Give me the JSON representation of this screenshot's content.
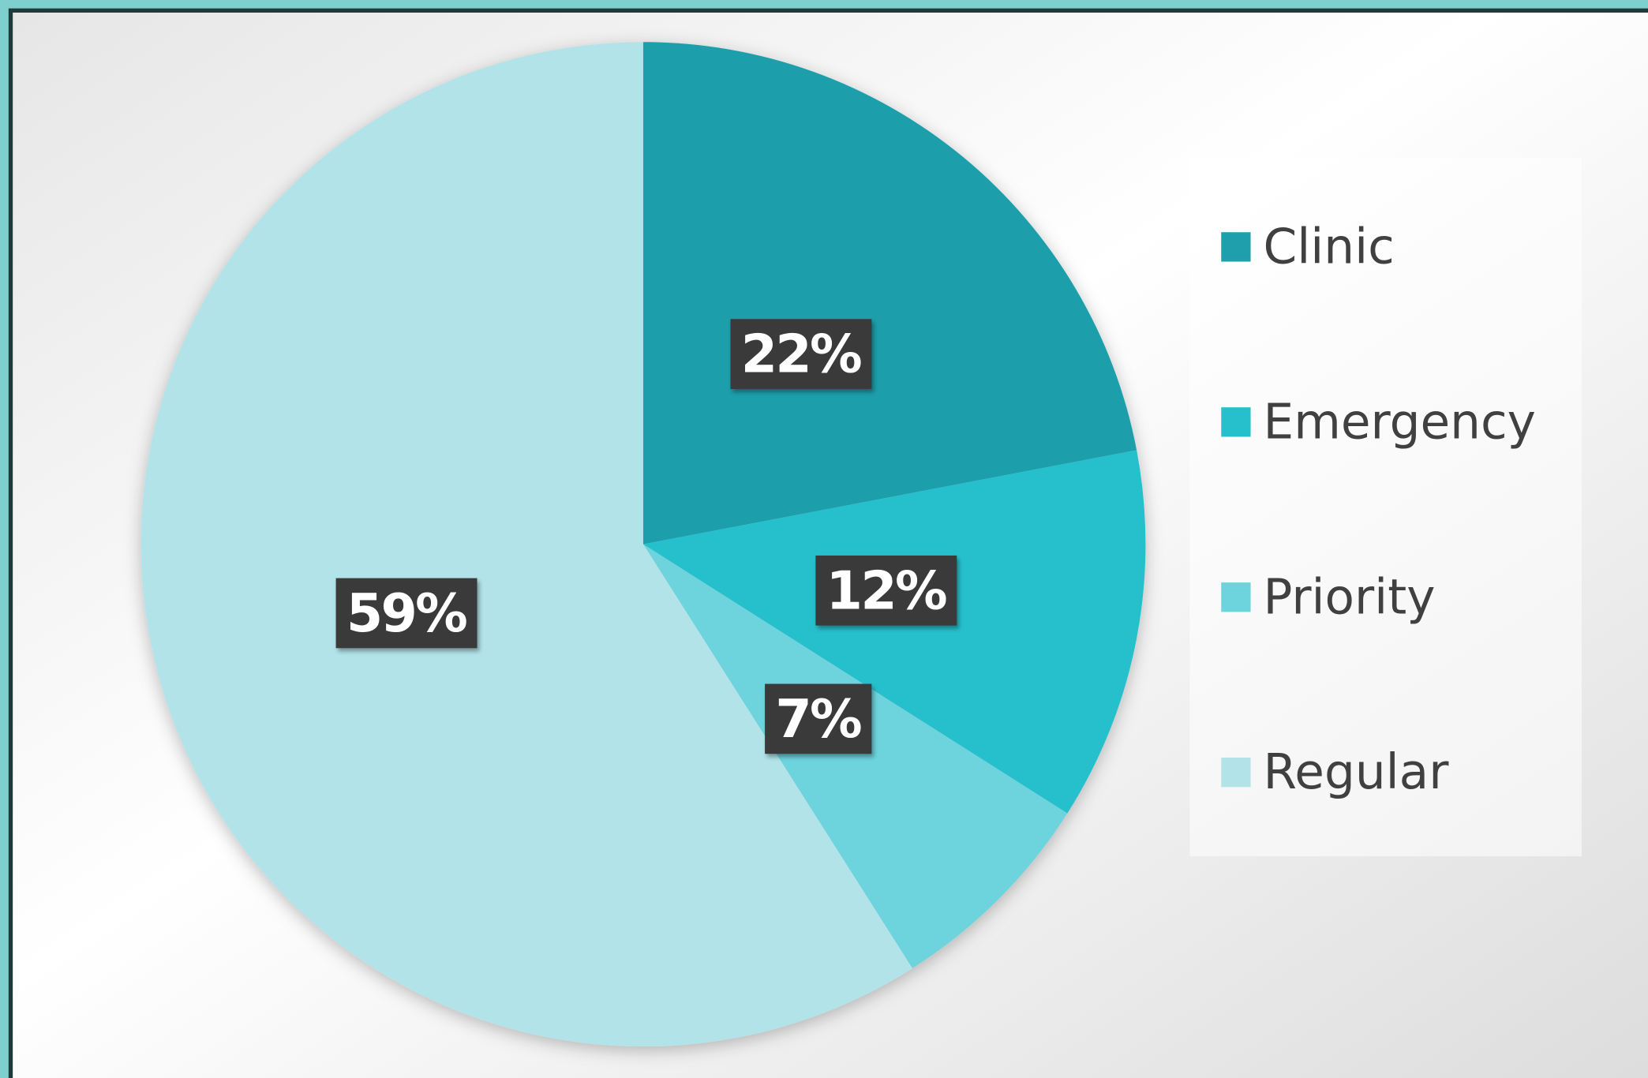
{
  "chart_data": {
    "type": "pie",
    "categories": [
      "Clinic",
      "Emergency",
      "Priority",
      "Regular"
    ],
    "values": [
      22,
      12,
      7,
      59
    ],
    "value_labels": [
      "22%",
      "12%",
      "7%",
      "59%"
    ],
    "colors": [
      "#1f9fab",
      "#26c0cc",
      "#6dd3dd",
      "#b1e3e8"
    ],
    "legend": "right"
  }
}
